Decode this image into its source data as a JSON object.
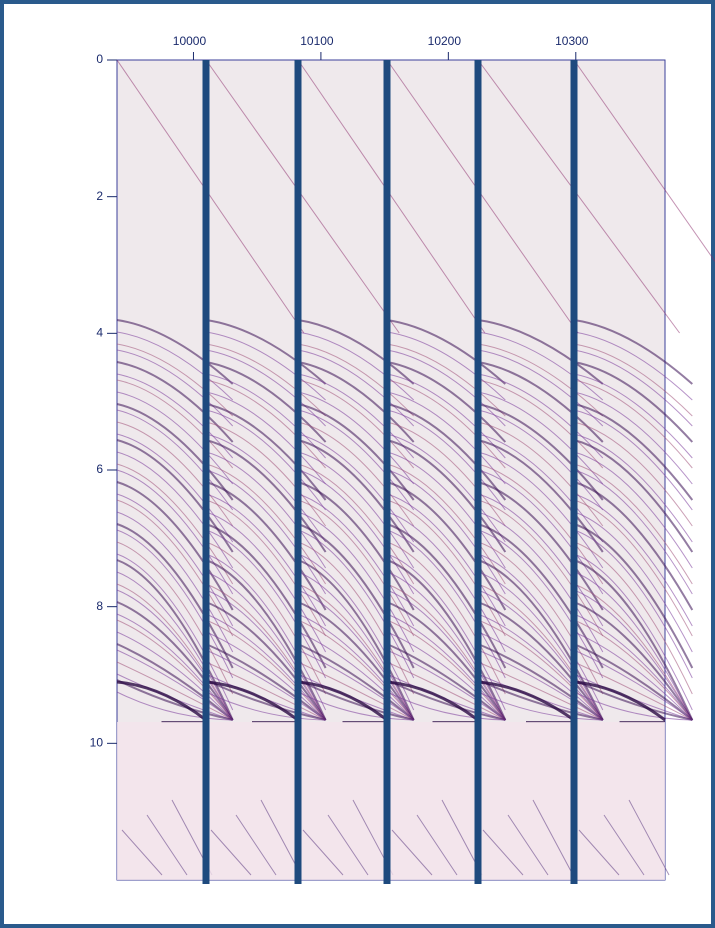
{
  "chart_data": {
    "type": "seismic",
    "xlim": [
      9940,
      10370
    ],
    "xticks": [
      10000,
      10100,
      10200,
      10300
    ],
    "ylim": [
      0,
      12
    ],
    "yticks": [
      0,
      2,
      4,
      6,
      8,
      10
    ],
    "y_inverted": true
  }
}
